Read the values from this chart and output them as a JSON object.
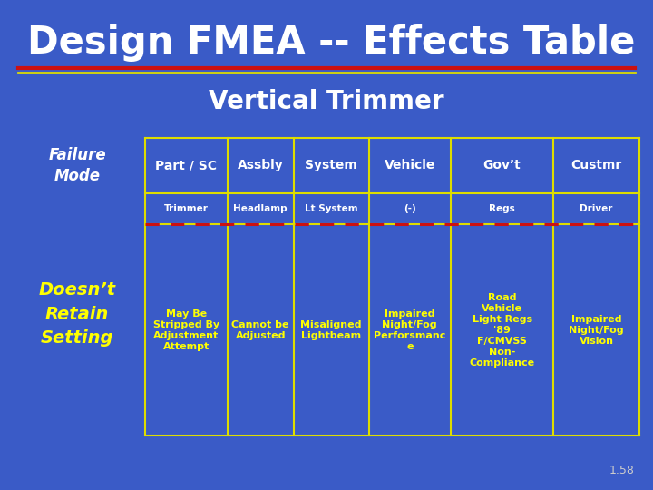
{
  "title": "Design FMEA -- Effects Table",
  "subtitle": "Vertical Trimmer",
  "bg_color": "#3a5bc7",
  "title_color": "#ffffff",
  "subtitle_color": "#ffffff",
  "title_underline_red": "#cc1111",
  "title_underline_yellow": "#dddd00",
  "failure_mode_label": "Failure\nMode",
  "failure_mode_value": "Doesn’t\nRetain\nSetting",
  "failure_mode_label_color": "#ffffff",
  "failure_mode_value_color": "#ffff00",
  "col_headers": [
    "Part / SC",
    "Assbly",
    "System",
    "Vehicle",
    "Gov’t",
    "Custmr"
  ],
  "col_header_color": "#ffffff",
  "row1": [
    "Trimmer",
    "Headlamp",
    "Lt System",
    "(-)",
    "Regs",
    "Driver"
  ],
  "row2": [
    "May Be\nStripped By\nAdjustment\nAttempt",
    "Cannot be\nAdjusted",
    "Misaligned\nLightbeam",
    "Impaired\nNight/Fog\nPerforsmanc\ne",
    "Road\nVehicle\nLight Regs\n'89\nF/CMVSS\nNon-\nCompliance",
    "Impaired\nNight/Fog\nVision"
  ],
  "row1_color": "#ffffff",
  "row2_color": "#ffff00",
  "dashed_line_color": "#cc1111",
  "table_line_color": "#dddd00",
  "slide_number": "1.58",
  "slide_number_color": "#cccccc",
  "fig_width": 7.2,
  "fig_height": 5.4,
  "dpi": 100
}
